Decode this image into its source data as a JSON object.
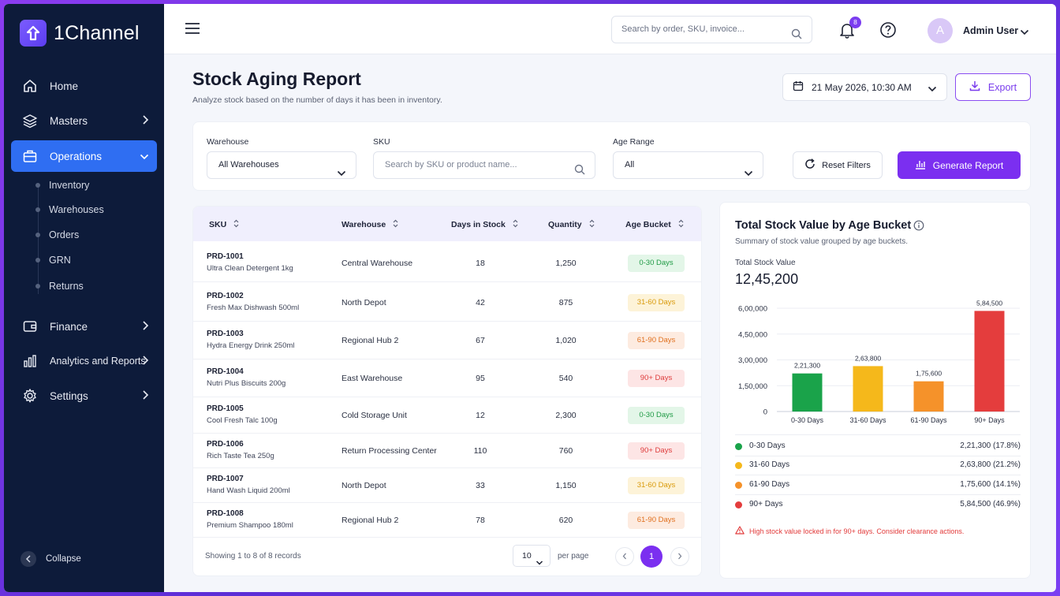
{
  "app": {
    "name": "1Channel"
  },
  "sidebar": {
    "items": [
      {
        "label": "Home",
        "icon": "home-icon"
      },
      {
        "label": "Masters",
        "icon": "layers-icon"
      },
      {
        "label": "Operations",
        "icon": "briefcase-icon",
        "active": true
      },
      {
        "label": "Finance",
        "icon": "wallet-icon"
      },
      {
        "label": "Analytics and Reports",
        "icon": "bar-chart-icon"
      },
      {
        "label": "Settings",
        "icon": "gear-icon"
      }
    ],
    "sub_items": [
      "Inventory",
      "Warehouses",
      "Orders",
      "GRN",
      "Returns"
    ],
    "collapse_label": "Collapse"
  },
  "topbar": {
    "search_placeholder": "Search by order, SKU, invoice...",
    "notification_count": "8",
    "user_initial": "A",
    "user_name": "Admin User"
  },
  "page": {
    "title": "Stock Aging Report",
    "subtitle": "Analyze stock based on the number of days it has been in inventory.",
    "date": "21 May 2026, 10:30 AM",
    "export_label": "Export"
  },
  "filters": {
    "warehouse_label": "Warehouse",
    "warehouse_value": "All Warehouses",
    "sku_label": "SKU",
    "sku_placeholder": "Search by SKU or product name...",
    "age_label": "Age Range",
    "age_value": "All",
    "reset_label": "Reset Filters",
    "generate_label": "Generate Report"
  },
  "table": {
    "headers": [
      "SKU",
      "Warehouse",
      "Days in Stock",
      "Quantity",
      "Age Bucket"
    ],
    "rows": [
      {
        "code": "PRD-1001",
        "name": "Ultra Clean Detergent 1kg",
        "warehouse": "Central Warehouse",
        "days": "18",
        "qty": "1,250",
        "bucket": "0-30 Days",
        "tone": "green"
      },
      {
        "code": "PRD-1002",
        "name": "Fresh Max Dishwash 500ml",
        "warehouse": "North Depot",
        "days": "42",
        "qty": "875",
        "bucket": "31-60 Days",
        "tone": "yellow"
      },
      {
        "code": "PRD-1003",
        "name": "Hydra Energy Drink 250ml",
        "warehouse": "Regional Hub 2",
        "days": "67",
        "qty": "1,020",
        "bucket": "61-90 Days",
        "tone": "orange"
      },
      {
        "code": "PRD-1004",
        "name": "Nutri Plus Biscuits 200g",
        "warehouse": "East Warehouse",
        "days": "95",
        "qty": "540",
        "bucket": "90+ Days",
        "tone": "red"
      },
      {
        "code": "PRD-1005",
        "name": "Cool Fresh Talc 100g",
        "warehouse": "Cold Storage Unit",
        "days": "12",
        "qty": "2,300",
        "bucket": "0-30 Days",
        "tone": "green"
      },
      {
        "code": "PRD-1006",
        "name": "Rich Taste Tea 250g",
        "warehouse": "Return Processing Center",
        "days": "110",
        "qty": "760",
        "bucket": "90+ Days",
        "tone": "red"
      },
      {
        "code": "PRD-1007",
        "name": "Hand Wash Liquid 200ml",
        "warehouse": "North Depot",
        "days": "33",
        "qty": "1,150",
        "bucket": "31-60 Days",
        "tone": "yellow"
      },
      {
        "code": "PRD-1008",
        "name": "Premium Shampoo 180ml",
        "warehouse": "Regional Hub 2",
        "days": "78",
        "qty": "620",
        "bucket": "61-90 Days",
        "tone": "orange"
      }
    ],
    "footer_text": "Showing 1 to 8 of 8 records",
    "per_page_value": "10",
    "per_page_label": "per page",
    "current_page": "1"
  },
  "tones": {
    "green": {
      "bg": "#e3f6e8",
      "fg": "#1e9a44"
    },
    "yellow": {
      "bg": "#fdf3d8",
      "fg": "#d99a0b"
    },
    "orange": {
      "bg": "#fdebe0",
      "fg": "#e0701e"
    },
    "red": {
      "bg": "#fde5e5",
      "fg": "#de3b3b"
    }
  },
  "chart_panel": {
    "title": "Total Stock Value by Age Bucket",
    "subtitle": "Summary of stock value grouped by age buckets.",
    "total_label": "Total Stock Value",
    "total_value": "12,45,200",
    "legend": [
      {
        "name": "0-30 Days",
        "value": "2,21,300 (17.8%)",
        "color": "#1aa34a"
      },
      {
        "name": "31-60 Days",
        "value": "2,63,800 (21.2%)",
        "color": "#f5b81b"
      },
      {
        "name": "61-90 Days",
        "value": "1,75,600 (14.1%)",
        "color": "#f5922a"
      },
      {
        "name": "90+ Days",
        "value": "5,84,500 (46.9%)",
        "color": "#e43d3d"
      }
    ],
    "warning": "High stock value locked in for 90+ days. Consider clearance actions."
  },
  "chart_data": {
    "type": "bar",
    "categories": [
      "0-30 Days",
      "31-60 Days",
      "61-90 Days",
      "90+ Days"
    ],
    "values": [
      221300,
      263800,
      175600,
      584500
    ],
    "value_labels": [
      "2,21,300",
      "2,63,800",
      "1,75,600",
      "5,84,500"
    ],
    "colors": [
      "#1aa34a",
      "#f5b81b",
      "#f5922a",
      "#e43d3d"
    ],
    "y_ticks": [
      0,
      150000,
      300000,
      450000,
      600000
    ],
    "y_tick_labels": [
      "0",
      "1,50,000",
      "3,00,000",
      "4,50,000",
      "6,00,000"
    ],
    "ylim": [
      0,
      600000
    ],
    "grid": true
  }
}
